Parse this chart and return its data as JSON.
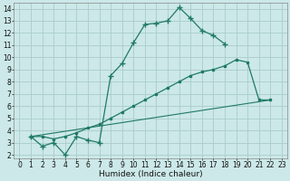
{
  "xlabel": "Humidex (Indice chaleur)",
  "bg_color": "#cce8e8",
  "grid_color": "#aacccc",
  "line_color": "#1f7a65",
  "xlim": [
    -0.5,
    23.5
  ],
  "ylim": [
    1.7,
    14.5
  ],
  "xticks": [
    0,
    1,
    2,
    3,
    4,
    5,
    6,
    7,
    8,
    9,
    10,
    11,
    12,
    13,
    14,
    15,
    16,
    17,
    18,
    19,
    20,
    21,
    22,
    23
  ],
  "yticks": [
    2,
    3,
    4,
    5,
    6,
    7,
    8,
    9,
    10,
    11,
    12,
    13,
    14
  ],
  "line1_x": [
    1,
    2,
    3,
    4,
    5,
    6,
    7,
    8,
    9,
    10,
    11,
    12,
    13,
    14,
    15,
    16,
    17,
    18
  ],
  "line1_y": [
    3.5,
    2.7,
    3.0,
    2.0,
    3.5,
    3.2,
    3.0,
    8.5,
    9.5,
    11.2,
    12.7,
    12.8,
    13.0,
    14.1,
    13.2,
    12.2,
    11.8,
    11.1
  ],
  "line2_x": [
    1,
    2,
    3,
    4,
    5,
    6,
    7,
    8,
    9,
    10,
    11,
    12,
    13,
    14,
    15,
    16,
    17,
    18,
    19,
    20,
    21,
    22
  ],
  "line2_y": [
    3.5,
    3.5,
    3.3,
    3.5,
    3.8,
    4.2,
    4.5,
    5.0,
    5.5,
    6.0,
    6.5,
    7.0,
    7.5,
    8.0,
    8.5,
    8.8,
    9.0,
    9.3,
    9.8,
    9.6,
    6.5,
    6.5
  ],
  "line3_x": [
    1,
    22
  ],
  "line3_y": [
    3.5,
    6.5
  ]
}
